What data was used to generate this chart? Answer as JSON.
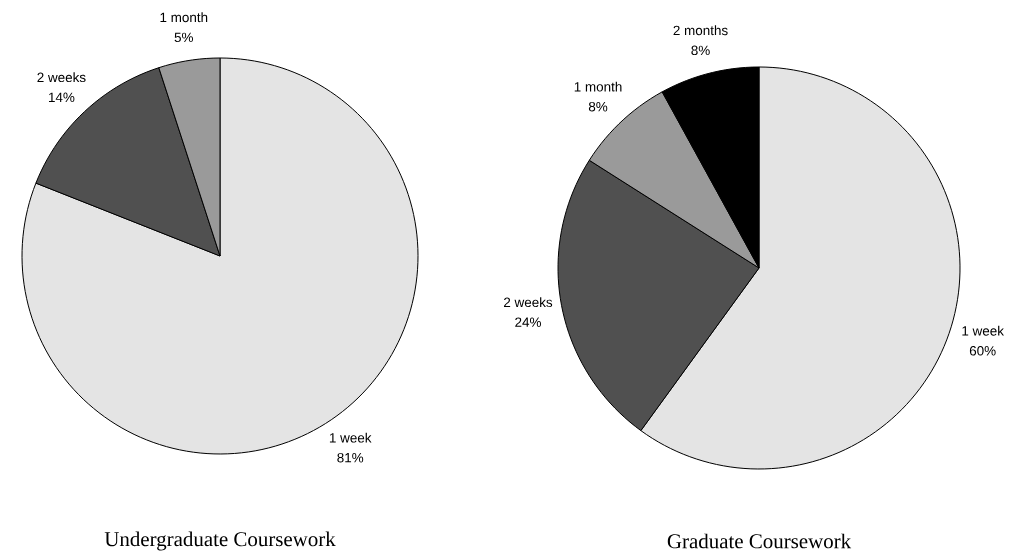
{
  "chart_data": [
    {
      "type": "pie",
      "title": "Undergraduate Coursework",
      "categories": [
        "1 week",
        "2 weeks",
        "1 month"
      ],
      "values": [
        81,
        14,
        5
      ],
      "value_labels": [
        "81%",
        "14%",
        "5%"
      ],
      "colors": [
        "#e4e4e4",
        "#505050",
        "#9a9a9a"
      ]
    },
    {
      "type": "pie",
      "title": "Graduate Coursework",
      "categories": [
        "1 week",
        "2 weeks",
        "1 month",
        "2 months"
      ],
      "values": [
        60,
        24,
        8,
        8
      ],
      "value_labels": [
        "60%",
        "24%",
        "8%",
        "8%"
      ],
      "colors": [
        "#e4e4e4",
        "#505050",
        "#9a9a9a",
        "#000000"
      ]
    }
  ]
}
